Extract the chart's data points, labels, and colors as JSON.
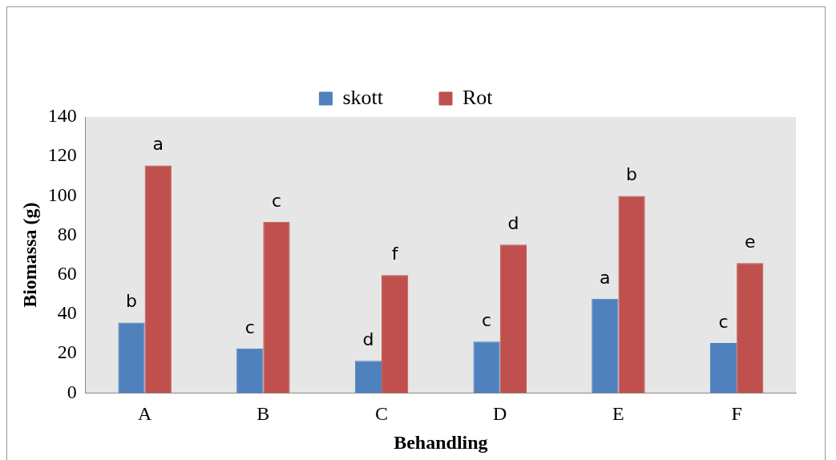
{
  "chart_data": {
    "type": "bar",
    "xlabel": "Behandling",
    "ylabel": "Biomassa (g)",
    "categories": [
      "A",
      "B",
      "C",
      "D",
      "E",
      "F"
    ],
    "series": [
      {
        "name": "skott",
        "color": "#4f81bd",
        "values": [
          35.7,
          22.6,
          16.3,
          26.1,
          47.8,
          25.4
        ]
      },
      {
        "name": "Rot",
        "color": "#c0504d",
        "values": [
          115.4,
          86.8,
          59.8,
          75.3,
          100.0,
          65.9
        ]
      }
    ],
    "ylim": [
      0,
      140
    ],
    "yticks": [
      0,
      20,
      40,
      60,
      80,
      100,
      120,
      140
    ],
    "grid": false,
    "legend": "top",
    "annotations": [
      {
        "text": "b",
        "x": "A",
        "y": 35.7
      },
      {
        "text": "a",
        "x": "A",
        "y": 115.4
      },
      {
        "text": "c",
        "x": "B",
        "y": 22.6
      },
      {
        "text": "c",
        "x": "B",
        "y": 86.8
      },
      {
        "text": "d",
        "x": "C",
        "y": 16.3
      },
      {
        "text": "f",
        "x": "C",
        "y": 59.8
      },
      {
        "text": "c",
        "x": "D",
        "y": 26.1
      },
      {
        "text": "d",
        "x": "D",
        "y": 75.3
      },
      {
        "text": "a",
        "x": "E",
        "y": 47.8
      },
      {
        "text": "b",
        "x": "E",
        "y": 100.0
      },
      {
        "text": "c",
        "x": "F",
        "y": 25.4
      },
      {
        "text": "e",
        "x": "F",
        "y": 65.9
      }
    ]
  }
}
